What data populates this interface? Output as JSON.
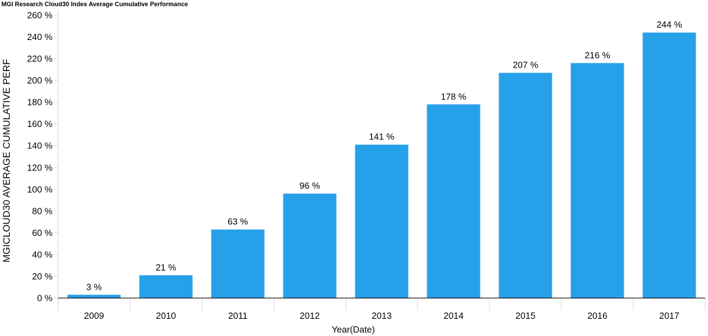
{
  "chart_data": {
    "type": "bar",
    "title": "MGI Research Cloud30 Index Average Cumulative Performance",
    "xlabel": "Year(Date)",
    "ylabel": "MGICLOUD30 AVERAGE CUMULATIVE PERF",
    "categories": [
      "2009",
      "2010",
      "2011",
      "2012",
      "2013",
      "2014",
      "2015",
      "2016",
      "2017"
    ],
    "values": [
      3,
      21,
      63,
      96,
      141,
      178,
      207,
      216,
      244
    ],
    "data_labels": [
      "3 %",
      "21 %",
      "63 %",
      "96 %",
      "141 %",
      "178 %",
      "207 %",
      "216 %",
      "244 %"
    ],
    "ylim": [
      0,
      260
    ],
    "yticks": [
      0,
      20,
      40,
      60,
      80,
      100,
      120,
      140,
      160,
      180,
      200,
      220,
      240,
      260
    ],
    "ytick_labels": [
      "0 %",
      "20 %",
      "40 %",
      "60 %",
      "80 %",
      "100 %",
      "120 %",
      "140 %",
      "160 %",
      "180 %",
      "200 %",
      "220 %",
      "240 %",
      "260 %"
    ],
    "grid": false,
    "legend": "none",
    "bar_color": "#27A0EA"
  }
}
